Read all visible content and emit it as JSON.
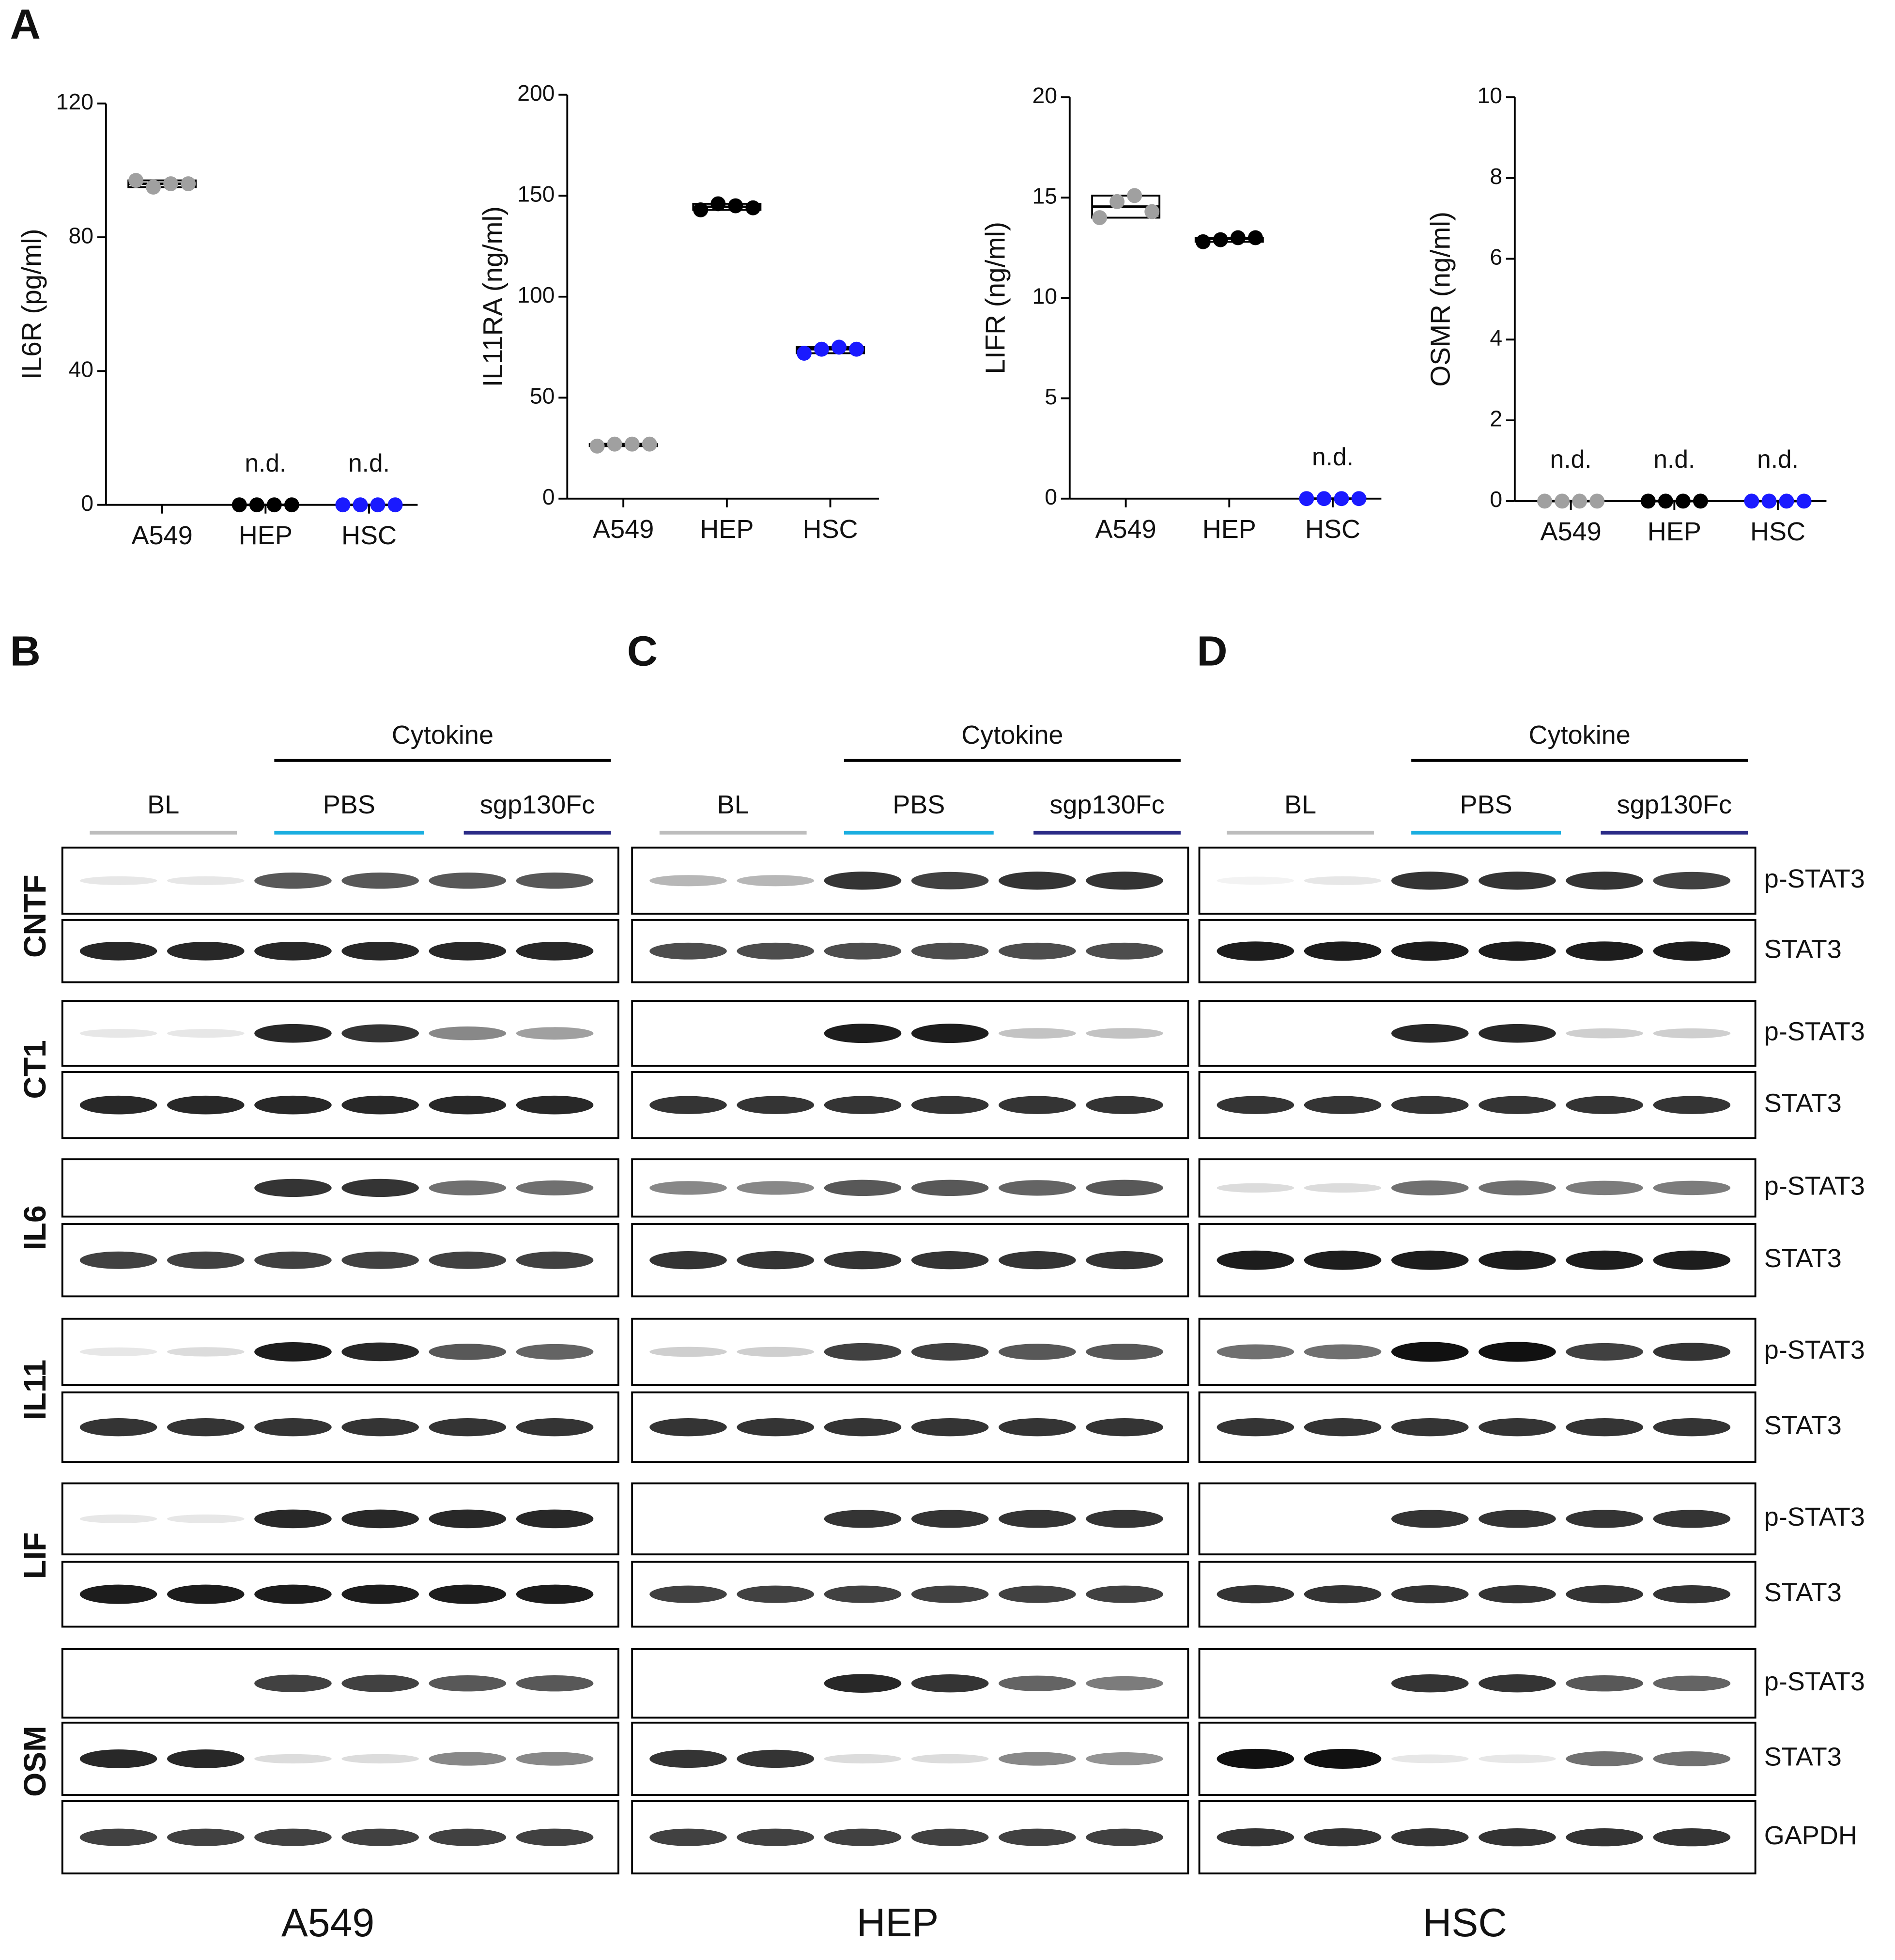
{
  "panel_a_label": "A",
  "chart_data": [
    {
      "type": "box",
      "ylabel": "IL6R (pg/ml)",
      "categories": [
        "A549",
        "HEP",
        "HSC"
      ],
      "series": [
        {
          "color": "#a0a0a0",
          "values": [
            97,
            95,
            96,
            96
          ]
        },
        {
          "color": "#000000",
          "values": [
            0,
            0,
            0,
            0
          ]
        },
        {
          "color": "#1a1aff",
          "values": [
            0,
            0,
            0,
            0
          ]
        }
      ],
      "annotations": [
        null,
        "n.d.",
        "n.d."
      ],
      "ylim": [
        0,
        120
      ],
      "yticks": [
        0,
        40,
        80,
        120
      ]
    },
    {
      "type": "box",
      "ylabel": "IL11RA (ng/ml)",
      "categories": [
        "A549",
        "HEP",
        "HSC"
      ],
      "series": [
        {
          "color": "#a0a0a0",
          "values": [
            26,
            27,
            27,
            27
          ]
        },
        {
          "color": "#000000",
          "values": [
            143,
            146,
            145,
            144
          ]
        },
        {
          "color": "#1a1aff",
          "values": [
            72,
            74,
            75,
            74
          ]
        }
      ],
      "annotations": [
        null,
        null,
        null
      ],
      "ylim": [
        0,
        200
      ],
      "yticks": [
        0,
        50,
        100,
        150,
        200
      ]
    },
    {
      "type": "box",
      "ylabel": "LIFR (ng/ml)",
      "categories": [
        "A549",
        "HEP",
        "HSC"
      ],
      "series": [
        {
          "color": "#a0a0a0",
          "values": [
            14.0,
            14.8,
            15.1,
            14.3
          ]
        },
        {
          "color": "#000000",
          "values": [
            12.8,
            12.9,
            13.0,
            13.0
          ]
        },
        {
          "color": "#1a1aff",
          "values": [
            0,
            0,
            0,
            0
          ]
        }
      ],
      "annotations": [
        null,
        null,
        "n.d."
      ],
      "ylim": [
        0,
        20
      ],
      "yticks": [
        0,
        5,
        10,
        15,
        20
      ]
    },
    {
      "type": "box",
      "ylabel": "OSMR (ng/ml)",
      "categories": [
        "A549",
        "HEP",
        "HSC"
      ],
      "series": [
        {
          "color": "#a0a0a0",
          "values": [
            0,
            0,
            0,
            0
          ]
        },
        {
          "color": "#000000",
          "values": [
            0,
            0,
            0,
            0
          ]
        },
        {
          "color": "#1a1aff",
          "values": [
            0,
            0,
            0,
            0
          ]
        }
      ],
      "annotations": [
        "n.d.",
        "n.d.",
        "n.d."
      ],
      "ylim": [
        0,
        10
      ],
      "yticks": [
        0,
        2,
        4,
        6,
        8,
        10
      ]
    }
  ],
  "blots": {
    "cytokines": [
      "CNTF",
      "CT1",
      "IL6",
      "IL11",
      "LIF",
      "OSM"
    ],
    "row_labels": [
      "p-STAT3",
      "STAT3",
      "p-STAT3",
      "STAT3",
      "p-STAT3",
      "STAT3",
      "p-STAT3",
      "STAT3",
      "p-STAT3",
      "STAT3",
      "p-STAT3",
      "STAT3",
      "GAPDH"
    ],
    "panels": [
      {
        "letter": "B",
        "cell_line": "A549",
        "header": "Cytokine",
        "groups": [
          "BL",
          "PBS",
          "sgp130Fc"
        ],
        "intensity": [
          [
            0.1,
            0.1,
            0.7,
            0.7,
            0.7,
            0.7
          ],
          [
            0.9,
            0.9,
            0.9,
            0.9,
            0.9,
            0.9
          ],
          [
            0.1,
            0.1,
            0.9,
            0.85,
            0.5,
            0.4
          ],
          [
            0.9,
            0.9,
            0.9,
            0.9,
            0.9,
            0.9
          ],
          [
            0,
            0,
            0.85,
            0.85,
            0.6,
            0.6
          ],
          [
            0.8,
            0.8,
            0.8,
            0.8,
            0.8,
            0.8
          ],
          [
            0.1,
            0.15,
            0.95,
            0.9,
            0.7,
            0.65
          ],
          [
            0.85,
            0.85,
            0.85,
            0.85,
            0.85,
            0.85
          ],
          [
            0.1,
            0.1,
            0.9,
            0.9,
            0.9,
            0.9
          ],
          [
            0.95,
            0.95,
            0.95,
            0.95,
            0.95,
            0.95
          ],
          [
            0,
            0,
            0.8,
            0.8,
            0.7,
            0.7
          ],
          [
            0.9,
            0.9,
            0.15,
            0.15,
            0.5,
            0.5
          ],
          [
            0.8,
            0.8,
            0.8,
            0.8,
            0.8,
            0.8
          ]
        ]
      },
      {
        "letter": "C",
        "cell_line": "HEP",
        "header": "Cytokine",
        "groups": [
          "BL",
          "PBS",
          "sgp130Fc"
        ],
        "intensity": [
          [
            0.3,
            0.3,
            0.85,
            0.8,
            0.85,
            0.85
          ],
          [
            0.75,
            0.75,
            0.75,
            0.75,
            0.75,
            0.75
          ],
          [
            0,
            0,
            0.95,
            0.95,
            0.25,
            0.25
          ],
          [
            0.85,
            0.85,
            0.85,
            0.85,
            0.85,
            0.85
          ],
          [
            0.5,
            0.5,
            0.7,
            0.7,
            0.65,
            0.7
          ],
          [
            0.85,
            0.85,
            0.85,
            0.85,
            0.85,
            0.85
          ],
          [
            0.2,
            0.2,
            0.8,
            0.8,
            0.7,
            0.7
          ],
          [
            0.85,
            0.85,
            0.85,
            0.85,
            0.85,
            0.85
          ],
          [
            0,
            0,
            0.85,
            0.85,
            0.85,
            0.85
          ],
          [
            0.8,
            0.8,
            0.8,
            0.8,
            0.8,
            0.8
          ],
          [
            0,
            0,
            0.9,
            0.85,
            0.65,
            0.55
          ],
          [
            0.85,
            0.85,
            0.15,
            0.15,
            0.5,
            0.45
          ],
          [
            0.8,
            0.8,
            0.8,
            0.8,
            0.8,
            0.8
          ]
        ]
      },
      {
        "letter": "D",
        "cell_line": "HSC",
        "header": "Cytokine",
        "groups": [
          "BL",
          "PBS",
          "sgp130Fc"
        ],
        "intensity": [
          [
            0.05,
            0.1,
            0.85,
            0.85,
            0.85,
            0.8
          ],
          [
            0.95,
            0.95,
            0.95,
            0.95,
            0.95,
            0.95
          ],
          [
            0,
            0,
            0.9,
            0.9,
            0.2,
            0.2
          ],
          [
            0.85,
            0.85,
            0.85,
            0.85,
            0.85,
            0.85
          ],
          [
            0.15,
            0.15,
            0.6,
            0.6,
            0.55,
            0.55
          ],
          [
            0.95,
            0.95,
            0.95,
            0.95,
            0.95,
            0.95
          ],
          [
            0.6,
            0.6,
            1,
            1,
            0.8,
            0.85
          ],
          [
            0.85,
            0.85,
            0.85,
            0.85,
            0.85,
            0.85
          ],
          [
            0,
            0,
            0.85,
            0.85,
            0.85,
            0.85
          ],
          [
            0.85,
            0.85,
            0.85,
            0.85,
            0.85,
            0.85
          ],
          [
            0,
            0,
            0.85,
            0.85,
            0.7,
            0.65
          ],
          [
            1,
            1,
            0.1,
            0.1,
            0.6,
            0.6
          ],
          [
            0.85,
            0.85,
            0.85,
            0.85,
            0.85,
            0.85
          ]
        ]
      }
    ]
  }
}
